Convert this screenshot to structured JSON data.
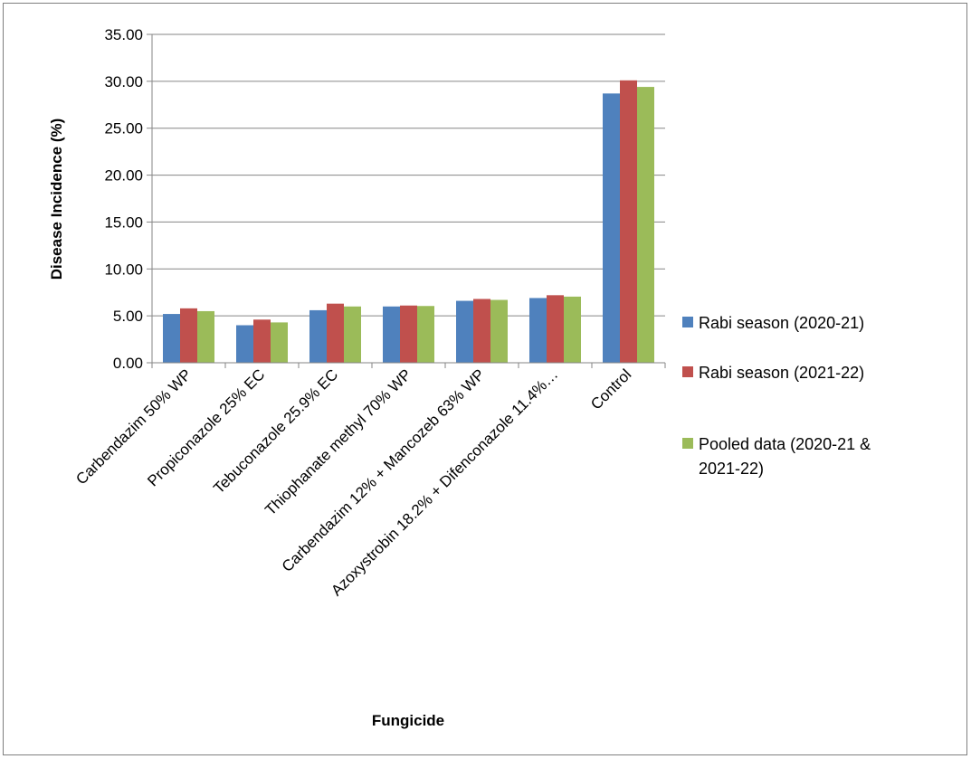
{
  "chart_data": {
    "type": "bar",
    "title": "",
    "xlabel": "Fungicide",
    "ylabel": "Disease Incidence (%)",
    "ylim": [
      0,
      35
    ],
    "y_ticks": [
      "0.00",
      "5.00",
      "10.00",
      "15.00",
      "20.00",
      "25.00",
      "30.00",
      "35.00"
    ],
    "y_tick_values": [
      0,
      5,
      10,
      15,
      20,
      25,
      30,
      35
    ],
    "categories": [
      "Carbendazim 50% WP",
      "Propiconazole 25% EC",
      "Tebuconazole 25.9% EC",
      "Thiophanate methyl 70% WP",
      "Carbendazim 12% + Mancozeb 63% WP",
      "Azoxystrobin 18.2% + Difenconazole 11.4%…",
      "Control"
    ],
    "series": [
      {
        "name": "Rabi season (2020-21)",
        "color": "#4f81bd",
        "values": [
          5.2,
          4.0,
          5.6,
          6.0,
          6.6,
          6.9,
          28.7
        ]
      },
      {
        "name": "Rabi season (2021-22)",
        "color": "#c0504d",
        "values": [
          5.8,
          4.6,
          6.3,
          6.1,
          6.8,
          7.2,
          30.1
        ]
      },
      {
        "name_lines": [
          "Pooled data (2020-21 &",
          "2021-22)"
        ],
        "color": "#9bbb59",
        "values": [
          5.5,
          4.3,
          6.0,
          6.05,
          6.7,
          7.05,
          29.4
        ]
      }
    ],
    "grid": true,
    "legend_position": "right"
  }
}
